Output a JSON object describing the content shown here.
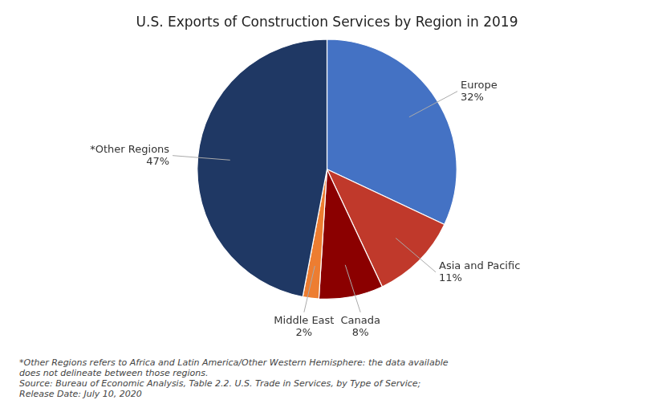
{
  "chart_data": {
    "type": "pie",
    "title": "U.S. Exports of Construction Services by Region in 2019",
    "categories": [
      "Europe",
      "Asia and Pacific",
      "Canada",
      "Middle East",
      "*Other Regions"
    ],
    "values": [
      32,
      11,
      8,
      2,
      47
    ],
    "value_labels": [
      "32%",
      "11%",
      "8%",
      "2%",
      "47%"
    ],
    "colors": [
      "#4472C4",
      "#C0392B",
      "#8B0000",
      "#ED7D31",
      "#1F3864"
    ],
    "data_labels": true,
    "footnote": [
      "*Other Regions refers to Africa and Latin America/Other Western Hemisphere: the data available",
      "does not delineate between those regions.",
      "Source: Bureau of Economic Analysis, Table 2.2. U.S. Trade in Services, by Type of Service;",
      "Release Date: July 10, 2020"
    ]
  }
}
